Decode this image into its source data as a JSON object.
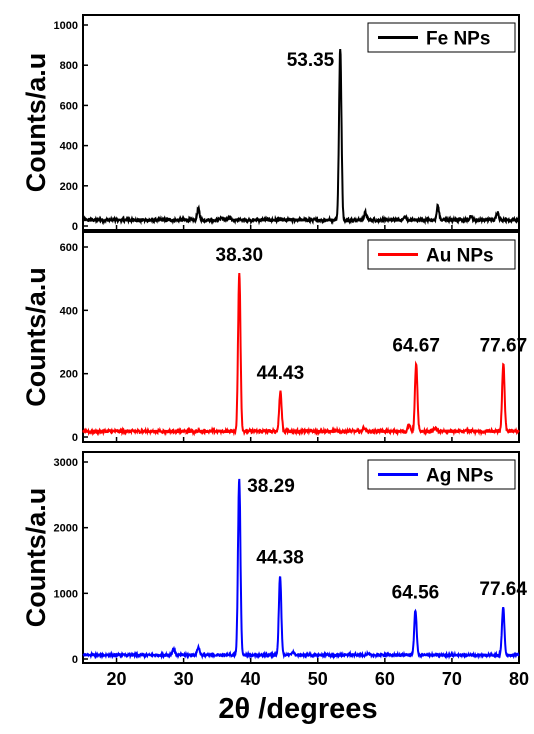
{
  "chart_data": {
    "type": "line",
    "xlabel": "2θ /degrees",
    "xlim": [
      15,
      80
    ],
    "x_ticks": [
      20,
      30,
      40,
      50,
      60,
      70,
      80
    ],
    "x_tick_labels": [
      "20",
      "30",
      "40",
      "50",
      "60",
      "70",
      "80"
    ],
    "grid": false,
    "panels": [
      {
        "name": "Fe NPs",
        "ylabel": "Counts/a.u",
        "ylim": [
          0,
          1000
        ],
        "y_ticks": [
          0,
          200,
          400,
          600,
          800,
          1000
        ],
        "y_tick_labels": [
          "0",
          "200",
          "400",
          "600",
          "800",
          "1000"
        ],
        "color": "#000000",
        "legend": "Fe NPs",
        "legend_position": "top-right",
        "baseline": 30,
        "noise": 8,
        "peaks": [
          {
            "x": 53.35,
            "y": 885,
            "label": "53.35"
          },
          {
            "x": 32.2,
            "y": 85
          },
          {
            "x": 35.6,
            "y": 42
          },
          {
            "x": 36.9,
            "y": 40
          },
          {
            "x": 57.1,
            "y": 68
          },
          {
            "x": 63.0,
            "y": 45
          },
          {
            "x": 67.9,
            "y": 100
          },
          {
            "x": 72.8,
            "y": 50
          },
          {
            "x": 76.8,
            "y": 70
          }
        ]
      },
      {
        "name": "Au NPs",
        "ylabel": "Counts/a.u",
        "ylim": [
          0,
          600
        ],
        "y_ticks": [
          0,
          200,
          400,
          600
        ],
        "y_tick_labels": [
          "0",
          "200",
          "400",
          "600"
        ],
        "color": "#ff0000",
        "legend": "Au NPs",
        "legend_position": "top-right",
        "baseline": 18,
        "noise": 5,
        "peaks": [
          {
            "x": 38.3,
            "y": 518,
            "label": "38.30"
          },
          {
            "x": 44.43,
            "y": 145,
            "label": "44.43"
          },
          {
            "x": 64.67,
            "y": 232,
            "label": "64.67"
          },
          {
            "x": 77.67,
            "y": 232,
            "label": "77.67"
          },
          {
            "x": 56.9,
            "y": 30
          },
          {
            "x": 63.6,
            "y": 38
          },
          {
            "x": 67.5,
            "y": 28
          }
        ]
      },
      {
        "name": "Ag NPs",
        "ylabel": "Counts/a.u",
        "ylim": [
          0,
          3000
        ],
        "y_ticks": [
          0,
          1000,
          2000,
          3000
        ],
        "y_tick_labels": [
          "0",
          "1000",
          "2000",
          "3000"
        ],
        "color": "#0000ff",
        "legend": "Ag NPs",
        "legend_position": "top-right",
        "baseline": 60,
        "noise": 15,
        "peaks": [
          {
            "x": 38.29,
            "y": 2760,
            "label": "38.29"
          },
          {
            "x": 44.38,
            "y": 1270,
            "label": "44.38"
          },
          {
            "x": 64.56,
            "y": 740,
            "label": "64.56"
          },
          {
            "x": 77.64,
            "y": 790,
            "label": "77.64"
          },
          {
            "x": 28.5,
            "y": 160
          },
          {
            "x": 32.2,
            "y": 180
          },
          {
            "x": 46.3,
            "y": 110
          },
          {
            "x": 54.8,
            "y": 70
          },
          {
            "x": 57.5,
            "y": 75
          }
        ]
      }
    ]
  }
}
